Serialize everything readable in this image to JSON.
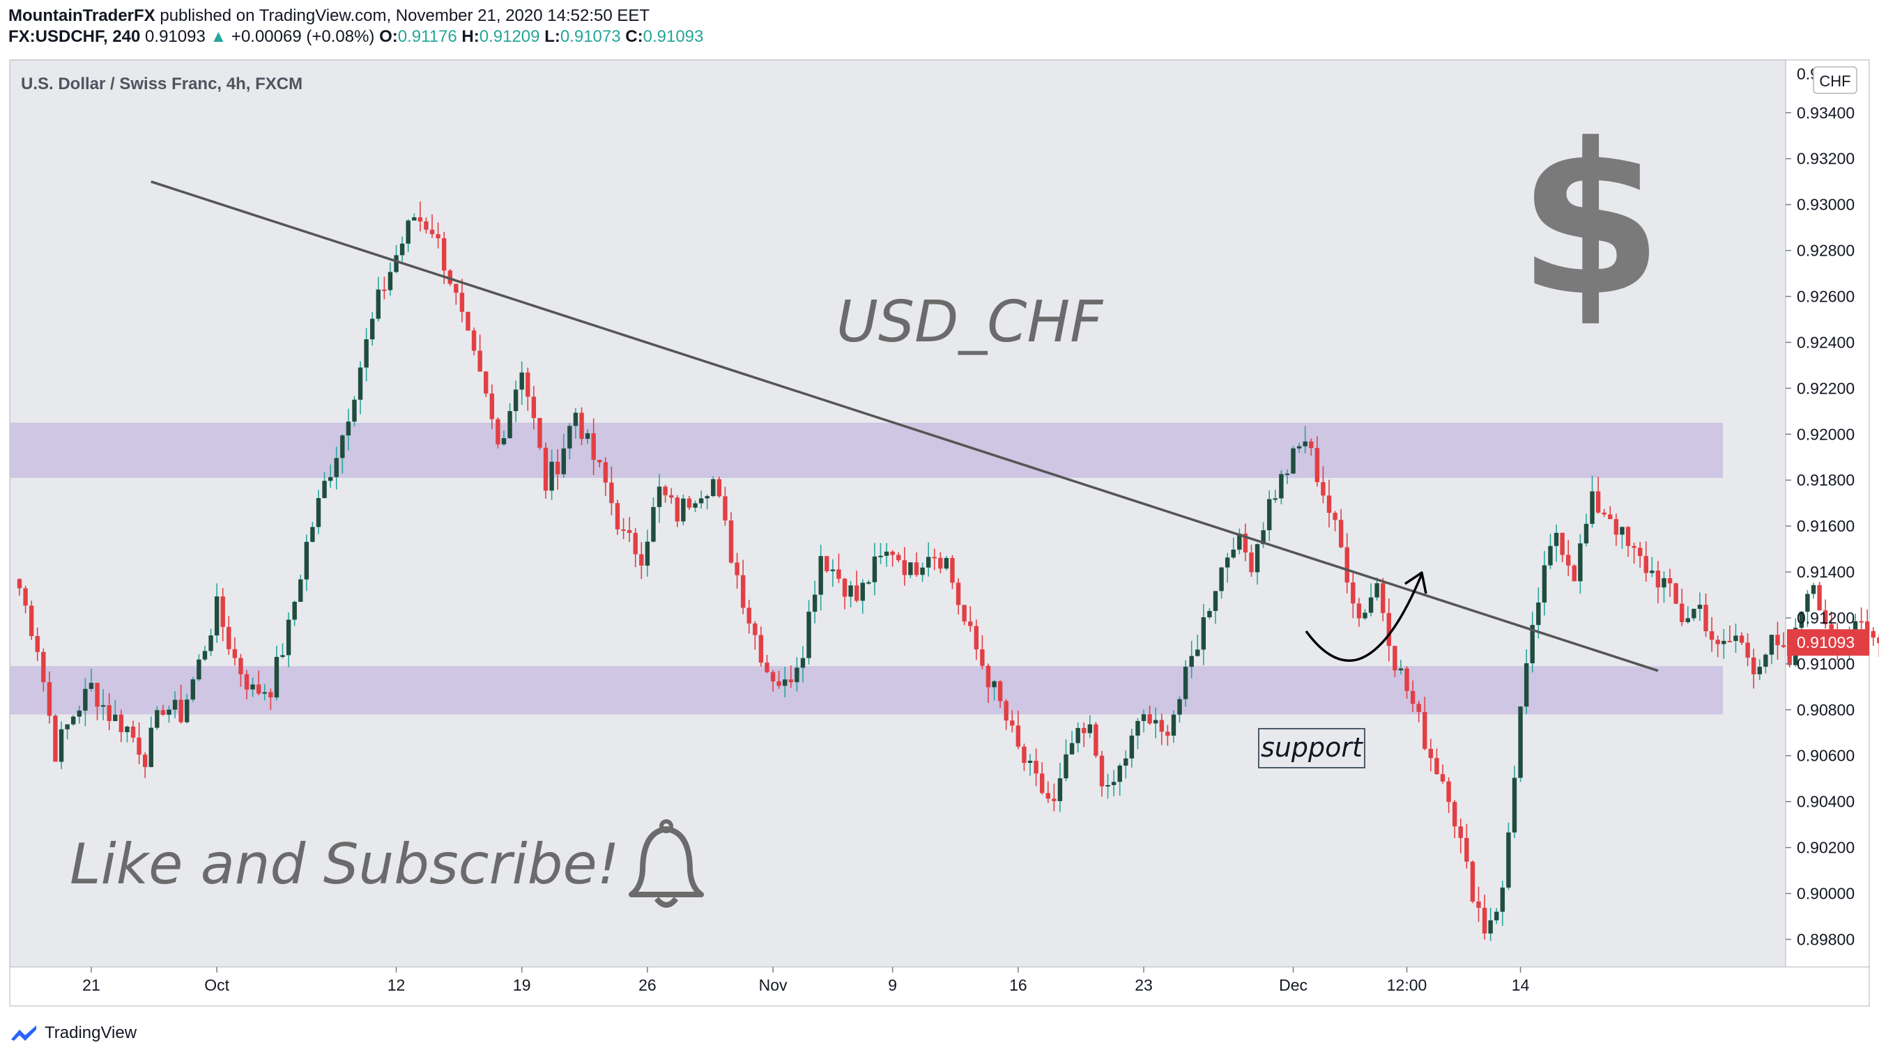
{
  "header": {
    "author": "MountainTraderFX",
    "published_text": "published on TradingView.com, November 21, 2020 14:52:50 EET",
    "symbol": "FX:USDCHF, 240",
    "last": "0.91093",
    "change_arrow": "▲",
    "change": "+0.00069 (+0.08%)",
    "open_label": "O:",
    "open": "0.91176",
    "high_label": "H:",
    "high": "0.91209",
    "low_label": "L:",
    "low": "0.91073",
    "close_label": "C:",
    "close": "0.91093"
  },
  "colors": {
    "up": "#26a69a",
    "up_body": "#1f4d3e",
    "down": "#e23f44",
    "zone": "#c9bfe0",
    "trend": "#555555",
    "background": "#e8e9ed",
    "price_tag": "#e23f44"
  },
  "chart_data": {
    "type": "candlestick",
    "title": "U.S. Dollar / Swiss Franc, 4h, FXCM",
    "currency_badge": "CHF",
    "y_axis_ticks": [
      "0.93400",
      "0.93200",
      "0.93000",
      "0.92800",
      "0.92600",
      "0.92400",
      "0.92200",
      "0.92000",
      "0.91800",
      "0.91600",
      "0.91400",
      "0.91200",
      "0.91000",
      "0.90800",
      "0.90600",
      "0.90400",
      "0.90200",
      "0.90000",
      "0.89800"
    ],
    "y_top_partial_tick": "0.93600",
    "ylim": [
      0.8968,
      0.9363
    ],
    "current_price": 0.91093,
    "current_price_label": "0.91093",
    "x_axis_ticks": [
      {
        "label": "14",
        "t": -9
      },
      {
        "label": "21",
        "t": 12
      },
      {
        "label": "Oct",
        "t": 33
      },
      {
        "label": "12",
        "t": 63
      },
      {
        "label": "19",
        "t": 84
      },
      {
        "label": "26",
        "t": 105
      },
      {
        "label": "Nov",
        "t": 126
      },
      {
        "label": "9",
        "t": 146
      },
      {
        "label": "16",
        "t": 167
      },
      {
        "label": "23",
        "t": 188
      },
      {
        "label": "Dec",
        "t": 213
      },
      {
        "label": "12:00",
        "t": 232
      },
      {
        "label": "14",
        "t": 251
      }
    ],
    "zones": [
      {
        "name": "resistance-zone",
        "from": 0.9181,
        "to": 0.9205
      },
      {
        "name": "support-zone",
        "from": 0.9078,
        "to": 0.9099
      }
    ],
    "trendline": [
      {
        "t": 22,
        "price": 0.931
      },
      {
        "t": 274,
        "price": 0.9097
      }
    ],
    "price_path": [
      [
        0,
        0.9133
      ],
      [
        3,
        0.9108
      ],
      [
        6,
        0.9062
      ],
      [
        9,
        0.9078
      ],
      [
        12,
        0.909
      ],
      [
        15,
        0.9078
      ],
      [
        18,
        0.9072
      ],
      [
        21,
        0.906
      ],
      [
        24,
        0.9082
      ],
      [
        27,
        0.9078
      ],
      [
        30,
        0.91
      ],
      [
        33,
        0.9124
      ],
      [
        36,
        0.9102
      ],
      [
        39,
        0.9088
      ],
      [
        42,
        0.909
      ],
      [
        45,
        0.9115
      ],
      [
        48,
        0.9152
      ],
      [
        51,
        0.9178
      ],
      [
        54,
        0.92
      ],
      [
        57,
        0.923
      ],
      [
        60,
        0.9258
      ],
      [
        63,
        0.9278
      ],
      [
        66,
        0.9295
      ],
      [
        69,
        0.929
      ],
      [
        72,
        0.9268
      ],
      [
        75,
        0.924
      ],
      [
        78,
        0.9215
      ],
      [
        80,
        0.9195
      ],
      [
        82,
        0.9212
      ],
      [
        84,
        0.923
      ],
      [
        86,
        0.9205
      ],
      [
        88,
        0.9178
      ],
      [
        90,
        0.9188
      ],
      [
        93,
        0.921
      ],
      [
        95,
        0.9195
      ],
      [
        98,
        0.9178
      ],
      [
        101,
        0.9155
      ],
      [
        104,
        0.9148
      ],
      [
        107,
        0.9175
      ],
      [
        110,
        0.9165
      ],
      [
        113,
        0.9175
      ],
      [
        116,
        0.918
      ],
      [
        119,
        0.9148
      ],
      [
        122,
        0.912
      ],
      [
        125,
        0.9098
      ],
      [
        128,
        0.909
      ],
      [
        131,
        0.9108
      ],
      [
        134,
        0.9148
      ],
      [
        137,
        0.9138
      ],
      [
        140,
        0.9128
      ],
      [
        143,
        0.9142
      ],
      [
        146,
        0.915
      ],
      [
        149,
        0.914
      ],
      [
        152,
        0.915
      ],
      [
        155,
        0.9145
      ],
      [
        158,
        0.9118
      ],
      [
        161,
        0.91
      ],
      [
        164,
        0.9082
      ],
      [
        167,
        0.9062
      ],
      [
        170,
        0.9048
      ],
      [
        173,
        0.9038
      ],
      [
        176,
        0.9065
      ],
      [
        179,
        0.907
      ],
      [
        182,
        0.9042
      ],
      [
        185,
        0.906
      ],
      [
        188,
        0.9078
      ],
      [
        191,
        0.9068
      ],
      [
        194,
        0.9085
      ],
      [
        197,
        0.911
      ],
      [
        200,
        0.9135
      ],
      [
        203,
        0.9155
      ],
      [
        206,
        0.9145
      ],
      [
        209,
        0.917
      ],
      [
        212,
        0.9185
      ],
      [
        215,
        0.9198
      ],
      [
        218,
        0.9175
      ],
      [
        221,
        0.915
      ],
      [
        224,
        0.912
      ],
      [
        227,
        0.9135
      ],
      [
        230,
        0.9102
      ],
      [
        233,
        0.9082
      ],
      [
        236,
        0.906
      ],
      [
        239,
        0.9045
      ],
      [
        242,
        0.901
      ],
      [
        245,
        0.8985
      ],
      [
        248,
        0.9
      ],
      [
        251,
        0.908
      ],
      [
        254,
        0.9128
      ],
      [
        257,
        0.9158
      ],
      [
        260,
        0.914
      ],
      [
        263,
        0.917
      ],
      [
        266,
        0.9165
      ],
      [
        269,
        0.915
      ],
      [
        272,
        0.9142
      ],
      [
        275,
        0.9135
      ],
      [
        278,
        0.912
      ],
      [
        281,
        0.9125
      ],
      [
        284,
        0.9105
      ],
      [
        287,
        0.9112
      ],
      [
        290,
        0.91
      ],
      [
        293,
        0.9108
      ],
      [
        296,
        0.91
      ],
      [
        299,
        0.9135
      ],
      [
        302,
        0.912
      ],
      [
        305,
        0.911
      ],
      [
        308,
        0.9115
      ],
      [
        311,
        0.9109
      ]
    ],
    "annotations": {
      "symbol_text": "USD_CHF",
      "dollar_sign": "$",
      "support_label": "support",
      "cta": "Like and Subscribe!",
      "bell_icon": "bell-icon"
    }
  },
  "footer": {
    "brand": "TradingView",
    "logo_icon": "tradingview-logo-icon"
  }
}
